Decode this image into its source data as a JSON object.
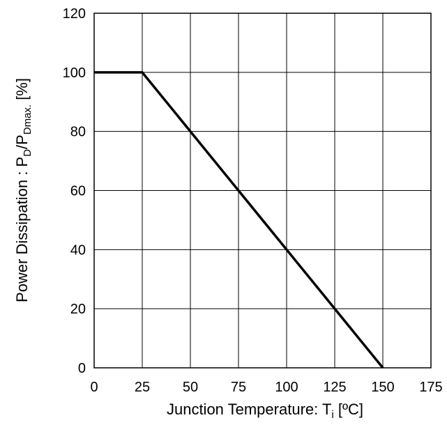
{
  "chart_data": {
    "type": "line",
    "xlabel": {
      "main": "Junction Temperature: T",
      "sub": "i",
      "unit": " [ºC]"
    },
    "ylabel": {
      "prefix": "Power Dissipation : P",
      "sub1": "D",
      "mid": "/P",
      "sub2": "Dmax.",
      "suffix": " [%]"
    },
    "xlim": [
      0,
      175
    ],
    "ylim": [
      0,
      120
    ],
    "x_ticks": [
      0,
      25,
      50,
      75,
      100,
      125,
      150,
      175
    ],
    "y_ticks": [
      0,
      20,
      40,
      60,
      80,
      100,
      120
    ],
    "grid": true,
    "series": [
      {
        "x": [
          0,
          25,
          150
        ],
        "y": [
          100,
          100,
          0
        ],
        "color": "#000000"
      }
    ]
  }
}
